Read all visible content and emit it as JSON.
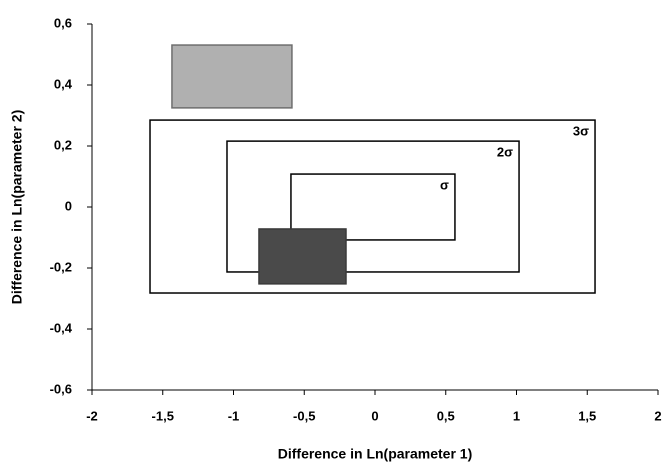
{
  "chart_data": {
    "type": "rect",
    "x_label": "Difference in Ln(parameter 1)",
    "y_label": "Difference in Ln(parameter 2)",
    "xlim": [
      -2,
      2
    ],
    "ylim": [
      -0.6,
      0.6
    ],
    "xticks": [
      -2,
      {
        "value": -1.5,
        "label": "-1,5"
      },
      -1,
      {
        "value": -0.5,
        "label": "-0,5"
      },
      0,
      {
        "value": 0.5,
        "label": "0,5"
      },
      1,
      {
        "value": 1.5,
        "label": "1,5"
      },
      2
    ],
    "yticks": [
      {
        "value": -0.6,
        "label": "-0,6"
      },
      {
        "value": -0.4,
        "label": "-0,4"
      },
      {
        "value": -0.2,
        "label": "-0,2"
      },
      0,
      {
        "value": 0.2,
        "label": "0,2"
      },
      {
        "value": 0.4,
        "label": "0,4"
      },
      {
        "value": 0.6,
        "label": "0,6"
      }
    ],
    "regions": [
      {
        "name": "3σ",
        "x": [
          -1.59,
          1.555
        ],
        "y": [
          -0.282,
          0.285
        ],
        "fill": "none",
        "color": "#000000"
      },
      {
        "name": "2σ",
        "x": [
          -1.046,
          1.018
        ],
        "y": [
          -0.213,
          0.216
        ],
        "fill": "none",
        "color": "#000000"
      },
      {
        "name": "σ",
        "x": [
          -0.594,
          0.565
        ],
        "y": [
          -0.108,
          0.108
        ],
        "fill": "none",
        "color": "#000000"
      },
      {
        "x": [
          -1.435,
          -0.587
        ],
        "y": [
          0.325,
          0.531
        ],
        "fill": "#b0b0b0",
        "color": "#6e6e6e"
      },
      {
        "x": [
          -0.82,
          -0.205
        ],
        "y": [
          -0.252,
          -0.072
        ],
        "fill": "#4a4a4a",
        "color": "#3a3a3a"
      }
    ]
  }
}
